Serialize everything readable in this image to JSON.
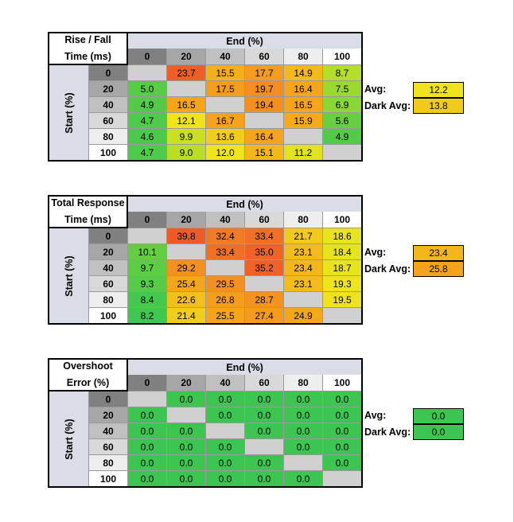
{
  "colors": {
    "empty": "#d0d0d0",
    "header_bg": "#d9dde6",
    "col_header_shades": [
      "#808080",
      "#a6a6a6",
      "#c0c0c0",
      "#d9d9d9",
      "#eeeeee",
      "#ffffff"
    ],
    "scale": {
      "green": "#3cc651",
      "yellow_green": "#a8dc2a",
      "yellow": "#f0e51c",
      "orange": "#f5a81a",
      "dark_orange": "#f28b22",
      "red_orange": "#ee5a28"
    }
  },
  "chart_data": [
    {
      "type": "heatmap",
      "title_line1": "Rise / Fall",
      "title_line2": "Time (ms)",
      "xlabel": "End (%)",
      "ylabel": "Start (%)",
      "x": [
        "0",
        "20",
        "40",
        "60",
        "80",
        "100"
      ],
      "y": [
        "0",
        "20",
        "40",
        "60",
        "80",
        "100"
      ],
      "values": [
        [
          null,
          23.7,
          15.5,
          17.7,
          14.9,
          8.7
        ],
        [
          5.0,
          null,
          17.5,
          19.7,
          16.4,
          7.5
        ],
        [
          4.9,
          16.5,
          null,
          19.4,
          16.5,
          6.9
        ],
        [
          4.7,
          12.1,
          16.7,
          null,
          15.9,
          5.6
        ],
        [
          4.6,
          9.9,
          13.6,
          16.4,
          null,
          4.9
        ],
        [
          4.7,
          9.0,
          12.0,
          15.1,
          11.2,
          null
        ]
      ],
      "color_range": [
        4.0,
        24.0
      ],
      "avg_label": "Avg:",
      "avg_value": 12.2,
      "dark_avg_label": "Dark Avg:",
      "dark_avg_value": 13.8
    },
    {
      "type": "heatmap",
      "title_line1": "Total Response",
      "title_line2": "Time (ms)",
      "xlabel": "End (%)",
      "ylabel": "Start (%)",
      "x": [
        "0",
        "20",
        "40",
        "60",
        "80",
        "100"
      ],
      "y": [
        "0",
        "20",
        "40",
        "60",
        "80",
        "100"
      ],
      "values": [
        [
          null,
          39.8,
          32.4,
          33.4,
          21.7,
          18.6
        ],
        [
          10.1,
          null,
          33.4,
          35.0,
          23.1,
          18.4
        ],
        [
          9.7,
          29.2,
          null,
          35.2,
          23.4,
          18.7
        ],
        [
          9.3,
          25.4,
          29.5,
          null,
          23.1,
          19.3
        ],
        [
          8.4,
          22.6,
          26.8,
          28.7,
          null,
          19.5
        ],
        [
          8.2,
          21.4,
          25.5,
          27.4,
          24.9,
          null
        ]
      ],
      "color_range": [
        8.0,
        36.0
      ],
      "avg_label": "Avg:",
      "avg_value": 23.4,
      "dark_avg_label": "Dark Avg:",
      "dark_avg_value": 25.8
    },
    {
      "type": "heatmap",
      "title_line1": "Overshoot",
      "title_line2": "Error (%)",
      "xlabel": "End (%)",
      "ylabel": "Start (%)",
      "x": [
        "0",
        "20",
        "40",
        "60",
        "80",
        "100"
      ],
      "y": [
        "0",
        "20",
        "40",
        "60",
        "80",
        "100"
      ],
      "values": [
        [
          null,
          0.0,
          0.0,
          0.0,
          0.0,
          0.0
        ],
        [
          0.0,
          null,
          0.0,
          0.0,
          0.0,
          0.0
        ],
        [
          0.0,
          0.0,
          null,
          0.0,
          0.0,
          0.0
        ],
        [
          0.0,
          0.0,
          0.0,
          null,
          0.0,
          0.0
        ],
        [
          0.0,
          0.0,
          0.0,
          0.0,
          null,
          0.0
        ],
        [
          0.0,
          0.0,
          0.0,
          0.0,
          0.0,
          null
        ]
      ],
      "color_range": [
        0.0,
        10.0
      ],
      "avg_label": "Avg:",
      "avg_value": 0.0,
      "dark_avg_label": "Dark Avg:",
      "dark_avg_value": 0.0
    }
  ]
}
